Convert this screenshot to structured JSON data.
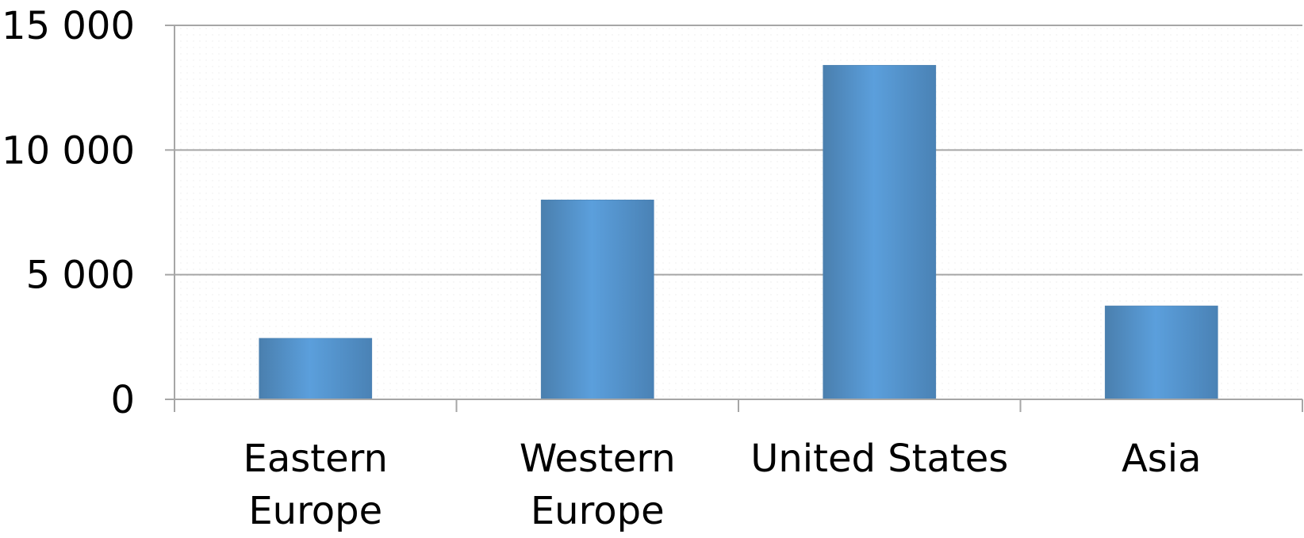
{
  "chart_data": {
    "type": "bar",
    "categories": [
      "Eastern Europe",
      "Western Europe",
      "United States",
      "Asia"
    ],
    "values": [
      2450,
      8000,
      13400,
      3750
    ],
    "ylim": [
      0,
      15000
    ],
    "yticks": [
      0,
      5000,
      10000,
      15000
    ],
    "ytick_labels": [
      "0",
      "5 000",
      "10 000",
      "15 000"
    ],
    "category_label_lines": [
      [
        "Eastern",
        "Europe"
      ],
      [
        "Western",
        "Europe"
      ],
      [
        "United States"
      ],
      [
        "Asia"
      ]
    ],
    "title": "",
    "xlabel": "",
    "ylabel": "",
    "grid": true,
    "legend": "none",
    "colors": {
      "bar": "#5b9bd5",
      "bar_edge": "#4a7fae",
      "gridline": "#a6a6a6",
      "axis": "#a6a6a6",
      "text": "#000000"
    }
  }
}
